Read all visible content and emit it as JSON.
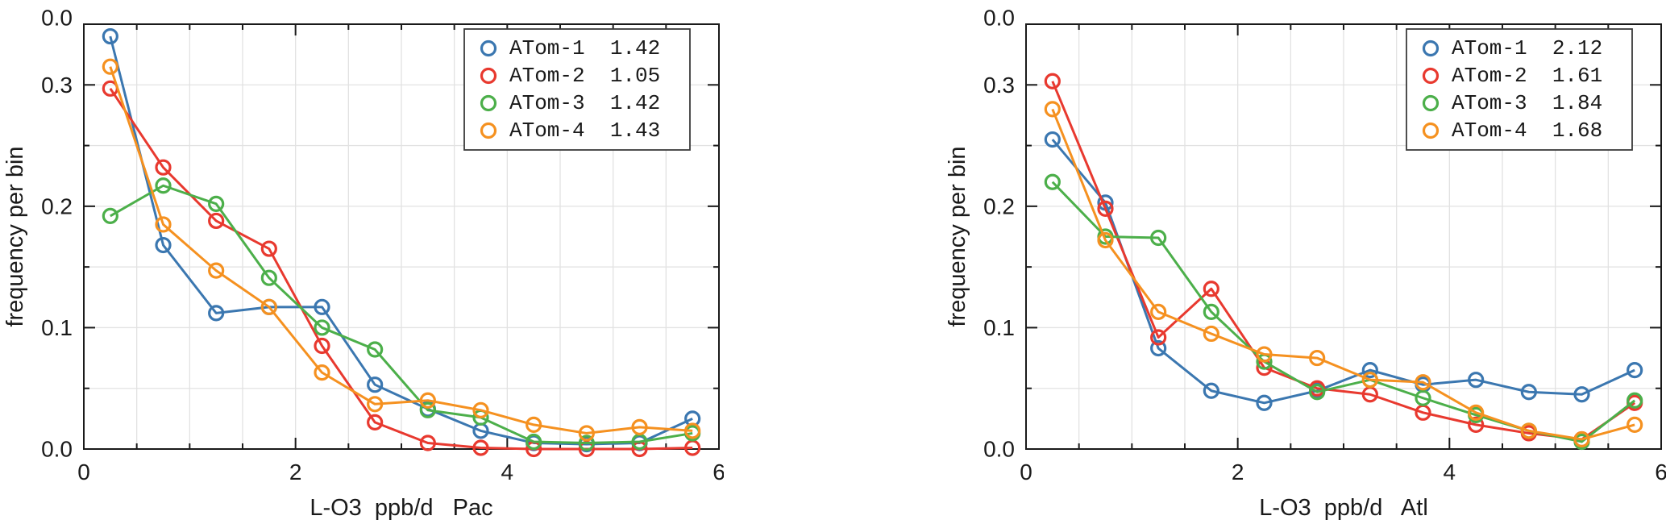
{
  "page": {
    "background": "#ffffff"
  },
  "colors": {
    "axis": "#1a1a1a",
    "grid": "#e2e2e2",
    "tick_text": "#1a1a1a",
    "legend_border": "#3a3a3a",
    "legend_bg": "#ffffff"
  },
  "chart_data": [
    {
      "type": "line",
      "panel": "Pacific",
      "xlabel": "L-O3  ppb/d   Pac",
      "ylabel": "frequency per bin",
      "xlim": [
        0,
        6
      ],
      "ylim": [
        0,
        0.35
      ],
      "xticks": [
        0,
        2,
        4,
        6
      ],
      "xtick_labels": [
        "0",
        "2",
        "4",
        "6"
      ],
      "yticks": [
        0,
        0.1,
        0.2,
        0.3
      ],
      "ytick_labels": [
        "0.0",
        "0.1",
        "0.2",
        "0.3"
      ],
      "minor_x_step": 0.5,
      "minor_y_step": 0.05,
      "grid": true,
      "top_cropped_tick_label": "0.0",
      "legend_position": "top-right",
      "x": [
        0.25,
        0.75,
        1.25,
        1.75,
        2.25,
        2.75,
        3.25,
        3.75,
        4.25,
        4.75,
        5.25,
        5.75
      ],
      "series": [
        {
          "name": "ATom-1",
          "legend_value": "1.42",
          "color": "#3B77B0",
          "values": [
            0.34,
            0.168,
            0.112,
            0.117,
            0.117,
            0.053,
            0.033,
            0.015,
            0.005,
            0.004,
            0.005,
            0.025
          ]
        },
        {
          "name": "ATom-2",
          "legend_value": "1.05",
          "color": "#E8392F",
          "values": [
            0.297,
            0.232,
            0.188,
            0.165,
            0.085,
            0.022,
            0.005,
            0.001,
            0.0,
            0.0,
            0.0,
            0.001
          ]
        },
        {
          "name": "ATom-3",
          "legend_value": "1.42",
          "color": "#4CAF4A",
          "values": [
            0.192,
            0.217,
            0.202,
            0.141,
            0.1,
            0.082,
            0.032,
            0.026,
            0.006,
            0.005,
            0.006,
            0.013
          ]
        },
        {
          "name": "ATom-4",
          "legend_value": "1.43",
          "color": "#F59120",
          "values": [
            0.315,
            0.185,
            0.147,
            0.117,
            0.063,
            0.037,
            0.04,
            0.032,
            0.02,
            0.013,
            0.018,
            0.015
          ]
        }
      ]
    },
    {
      "type": "line",
      "panel": "Atlantic",
      "xlabel": "L-O3  ppb/d   Atl",
      "ylabel": "frequency per bin",
      "xlim": [
        0,
        6
      ],
      "ylim": [
        0,
        0.35
      ],
      "xticks": [
        0,
        2,
        4,
        6
      ],
      "xtick_labels": [
        "0",
        "2",
        "4",
        "6"
      ],
      "yticks": [
        0,
        0.1,
        0.2,
        0.3
      ],
      "ytick_labels": [
        "0.0",
        "0.1",
        "0.2",
        "0.3"
      ],
      "minor_x_step": 0.5,
      "minor_y_step": 0.05,
      "grid": true,
      "top_cropped_tick_label": "0.0",
      "legend_position": "top-right",
      "x": [
        0.25,
        0.75,
        1.25,
        1.75,
        2.25,
        2.75,
        3.25,
        3.75,
        4.25,
        4.75,
        5.25,
        5.75
      ],
      "series": [
        {
          "name": "ATom-1",
          "legend_value": "2.12",
          "color": "#3B77B0",
          "values": [
            0.255,
            0.203,
            0.083,
            0.048,
            0.038,
            0.048,
            0.065,
            0.053,
            0.057,
            0.047,
            0.045,
            0.065
          ]
        },
        {
          "name": "ATom-2",
          "legend_value": "1.61",
          "color": "#E8392F",
          "values": [
            0.303,
            0.198,
            0.092,
            0.132,
            0.067,
            0.05,
            0.045,
            0.03,
            0.02,
            0.013,
            0.008,
            0.038
          ]
        },
        {
          "name": "ATom-3",
          "legend_value": "1.84",
          "color": "#4CAF4A",
          "values": [
            0.22,
            0.175,
            0.174,
            0.113,
            0.072,
            0.047,
            0.057,
            0.042,
            0.028,
            0.015,
            0.006,
            0.04
          ]
        },
        {
          "name": "ATom-4",
          "legend_value": "1.68",
          "color": "#F59120",
          "values": [
            0.28,
            0.172,
            0.113,
            0.095,
            0.078,
            0.075,
            0.057,
            0.055,
            0.03,
            0.015,
            0.008,
            0.02
          ]
        }
      ]
    }
  ]
}
